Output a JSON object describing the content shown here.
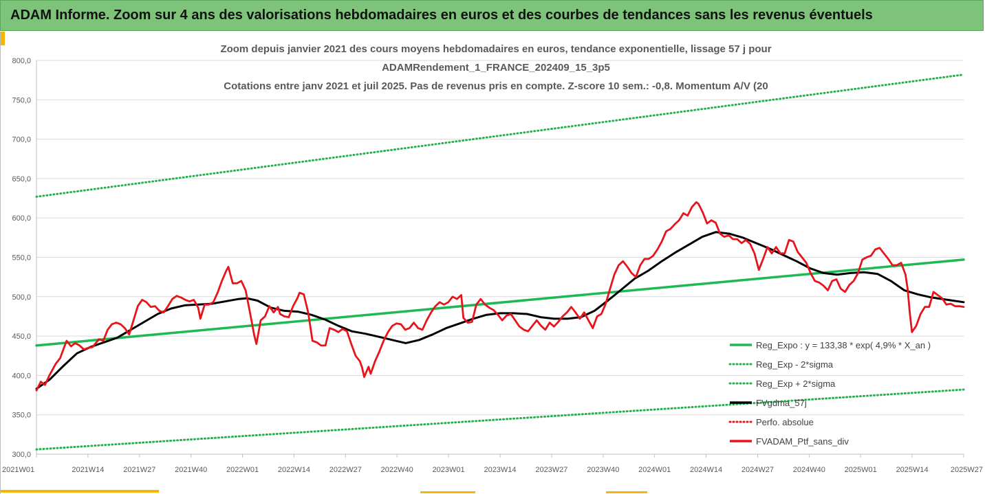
{
  "banner": {
    "title": "ADAM Informe. Zoom sur 4 ans des valorisations hebdomadaires en euros et des courbes de tendances sans les revenus éventuels"
  },
  "colors": {
    "banner_bg": "#7dc47a",
    "trend": "#1db954",
    "dotted": "#22b14c",
    "smooth": "#000000",
    "price": "#e8141b",
    "absolute": "#e8141b",
    "accent": "#f2b705"
  },
  "chart_data": {
    "type": "line",
    "title_lines": [
      "Zoom depuis janvier 2021 des cours moyens hebdomadaires  en euros, tendance exponentielle, lissage 57 j pour",
      "ADAMRendement_1_FRANCE_202409_15_3p5",
      "Cotations entre janv 2021 et juil 2025. Pas de revenus pris en compte. Z-score 10 sem.: -0,8. Momentum A/V (20"
    ],
    "x_ticks": [
      "2021W01",
      "2021W14",
      "2021W27",
      "2021W40",
      "2022W01",
      "2022W14",
      "2022W27",
      "2022W40",
      "2023W01",
      "2023W14",
      "2023W27",
      "2023W40",
      "2024W01",
      "2024W14",
      "2024W27",
      "2024W40",
      "2025W01",
      "2025W14",
      "2025W27"
    ],
    "y_ticks": [
      "300,0",
      "350,0",
      "400,0",
      "450,0",
      "500,0",
      "550,0",
      "600,0",
      "650,0",
      "700,0",
      "750,0",
      "800,0"
    ],
    "ylim": [
      300,
      800
    ],
    "x_range_weeks": [
      0,
      234
    ],
    "grid": "horizontal",
    "legend_position": "bottom-right",
    "series": [
      {
        "name": "Reg_Expo : y = 133,38 * exp( 4,9% *  X_an )",
        "style": "solid",
        "color": "#1db954",
        "points": [
          [
            0,
            438
          ],
          [
            234,
            547
          ]
        ]
      },
      {
        "name": "Reg_Exp - 2*sigma",
        "style": "dotted",
        "color": "#22b14c",
        "points": [
          [
            0,
            306
          ],
          [
            234,
            382
          ]
        ]
      },
      {
        "name": "Reg_Exp + 2*sigma",
        "style": "dotted",
        "color": "#22b14c",
        "points": [
          [
            0,
            627
          ],
          [
            234,
            782
          ]
        ]
      },
      {
        "name": "FVgdma_57j",
        "style": "solid",
        "color": "#000000",
        "points": [
          [
            0,
            383
          ],
          [
            5,
            395
          ],
          [
            10,
            412
          ],
          [
            15,
            428
          ],
          [
            20,
            436
          ],
          [
            25,
            442
          ],
          [
            30,
            448
          ],
          [
            35,
            458
          ],
          [
            40,
            468
          ],
          [
            45,
            478
          ],
          [
            50,
            485
          ],
          [
            55,
            489
          ],
          [
            60,
            490
          ],
          [
            65,
            491
          ],
          [
            70,
            494
          ],
          [
            75,
            497
          ],
          [
            78,
            498
          ],
          [
            82,
            495
          ],
          [
            87,
            486
          ],
          [
            92,
            482
          ],
          [
            97,
            481
          ],
          [
            102,
            477
          ],
          [
            107,
            471
          ],
          [
            112,
            463
          ],
          [
            117,
            456
          ],
          [
            122,
            453
          ],
          [
            127,
            449
          ],
          [
            132,
            445
          ],
          [
            137,
            441
          ],
          [
            142,
            445
          ],
          [
            147,
            452
          ],
          [
            152,
            460
          ],
          [
            157,
            466
          ],
          [
            162,
            472
          ],
          [
            167,
            477
          ],
          [
            172,
            479
          ],
          [
            177,
            479
          ],
          [
            182,
            478
          ],
          [
            187,
            474
          ],
          [
            192,
            472
          ],
          [
            197,
            472
          ],
          [
            202,
            474
          ],
          [
            207,
            482
          ],
          [
            212,
            495
          ],
          [
            217,
            509
          ],
          [
            222,
            523
          ],
          [
            227,
            533
          ],
          [
            232,
            545
          ],
          [
            237,
            556
          ],
          [
            242,
            566
          ],
          [
            247,
            576
          ],
          [
            252,
            582
          ],
          [
            257,
            580
          ],
          [
            262,
            575
          ],
          [
            267,
            568
          ],
          [
            272,
            561
          ],
          [
            277,
            553
          ],
          [
            282,
            545
          ],
          [
            287,
            536
          ],
          [
            292,
            530
          ],
          [
            297,
            528
          ],
          [
            302,
            530
          ],
          [
            307,
            531
          ],
          [
            312,
            529
          ],
          [
            317,
            520
          ],
          [
            322,
            508
          ],
          [
            327,
            503
          ],
          [
            332,
            499
          ],
          [
            338,
            496
          ],
          [
            344,
            493
          ]
        ]
      },
      {
        "name": "Perfo. absolue",
        "style": "dotted",
        "color": "#e8141b",
        "points": []
      },
      {
        "name": "FVADAM_Ptf_sans_div",
        "style": "solid",
        "color": "#e8141b",
        "points": [
          [
            0,
            381
          ],
          [
            2,
            392
          ],
          [
            4,
            388
          ],
          [
            6,
            400
          ],
          [
            9,
            415
          ],
          [
            11,
            422
          ],
          [
            13,
            437
          ],
          [
            14,
            444
          ],
          [
            16,
            437
          ],
          [
            18,
            441
          ],
          [
            20,
            438
          ],
          [
            22,
            433
          ],
          [
            24,
            435
          ],
          [
            26,
            436
          ],
          [
            29,
            446
          ],
          [
            31,
            444
          ],
          [
            33,
            458
          ],
          [
            35,
            465
          ],
          [
            37,
            467
          ],
          [
            39,
            465
          ],
          [
            41,
            460
          ],
          [
            43,
            452
          ],
          [
            45,
            470
          ],
          [
            47,
            488
          ],
          [
            49,
            496
          ],
          [
            51,
            493
          ],
          [
            53,
            487
          ],
          [
            55,
            488
          ],
          [
            57,
            482
          ],
          [
            59,
            480
          ],
          [
            61,
            488
          ],
          [
            63,
            497
          ],
          [
            65,
            501
          ],
          [
            67,
            499
          ],
          [
            69,
            496
          ],
          [
            71,
            494
          ],
          [
            73,
            496
          ],
          [
            75,
            486
          ],
          [
            76,
            472
          ],
          [
            78,
            490
          ],
          [
            80,
            490
          ],
          [
            82,
            493
          ],
          [
            84,
            505
          ],
          [
            86,
            520
          ],
          [
            88,
            533
          ],
          [
            89,
            538
          ],
          [
            91,
            517
          ],
          [
            93,
            517
          ],
          [
            95,
            520
          ],
          [
            97,
            508
          ],
          [
            99,
            480
          ],
          [
            101,
            451
          ],
          [
            102,
            440
          ],
          [
            104,
            470
          ],
          [
            106,
            475
          ],
          [
            108,
            488
          ],
          [
            110,
            480
          ],
          [
            112,
            487
          ],
          [
            113,
            478
          ],
          [
            115,
            475
          ],
          [
            117,
            474
          ],
          [
            119,
            488
          ],
          [
            121,
            498
          ],
          [
            122,
            505
          ],
          [
            124,
            503
          ],
          [
            126,
            480
          ],
          [
            128,
            444
          ],
          [
            130,
            442
          ],
          [
            132,
            438
          ],
          [
            134,
            438
          ],
          [
            136,
            460
          ],
          [
            138,
            458
          ],
          [
            140,
            455
          ],
          [
            142,
            459
          ],
          [
            144,
            456
          ],
          [
            146,
            440
          ],
          [
            148,
            425
          ],
          [
            150,
            418
          ],
          [
            151,
            410
          ],
          [
            152,
            398
          ],
          [
            154,
            411
          ],
          [
            155,
            402
          ],
          [
            157,
            418
          ],
          [
            159,
            430
          ],
          [
            161,
            444
          ],
          [
            163,
            455
          ],
          [
            165,
            463
          ],
          [
            167,
            466
          ],
          [
            169,
            465
          ],
          [
            171,
            458
          ],
          [
            173,
            460
          ],
          [
            175,
            467
          ],
          [
            177,
            460
          ],
          [
            179,
            458
          ],
          [
            181,
            470
          ],
          [
            183,
            480
          ],
          [
            185,
            488
          ],
          [
            187,
            493
          ],
          [
            189,
            490
          ],
          [
            191,
            493
          ],
          [
            193,
            500
          ],
          [
            195,
            497
          ],
          [
            197,
            502
          ],
          [
            198,
            473
          ],
          [
            200,
            467
          ],
          [
            202,
            468
          ],
          [
            204,
            490
          ],
          [
            206,
            497
          ],
          [
            208,
            490
          ],
          [
            210,
            486
          ],
          [
            212,
            483
          ],
          [
            214,
            477
          ],
          [
            216,
            470
          ],
          [
            218,
            476
          ],
          [
            220,
            478
          ],
          [
            222,
            470
          ],
          [
            224,
            462
          ],
          [
            226,
            458
          ],
          [
            228,
            456
          ],
          [
            230,
            463
          ],
          [
            232,
            470
          ],
          [
            234,
            463
          ],
          [
            236,
            458
          ],
          [
            238,
            467
          ],
          [
            240,
            462
          ],
          [
            242,
            468
          ],
          [
            244,
            475
          ],
          [
            246,
            480
          ],
          [
            248,
            487
          ],
          [
            250,
            480
          ],
          [
            252,
            472
          ],
          [
            254,
            480
          ],
          [
            256,
            470
          ],
          [
            258,
            460
          ],
          [
            260,
            475
          ],
          [
            262,
            478
          ],
          [
            264,
            491
          ],
          [
            266,
            510
          ],
          [
            268,
            528
          ],
          [
            270,
            540
          ],
          [
            272,
            545
          ],
          [
            274,
            538
          ],
          [
            276,
            530
          ],
          [
            278,
            525
          ],
          [
            280,
            540
          ],
          [
            282,
            548
          ],
          [
            284,
            548
          ],
          [
            286,
            552
          ],
          [
            288,
            560
          ],
          [
            290,
            570
          ],
          [
            292,
            583
          ],
          [
            294,
            586
          ],
          [
            296,
            592
          ],
          [
            298,
            597
          ],
          [
            300,
            606
          ],
          [
            302,
            603
          ],
          [
            304,
            614
          ],
          [
            306,
            620
          ],
          [
            307,
            618
          ],
          [
            309,
            607
          ],
          [
            311,
            593
          ],
          [
            313,
            597
          ],
          [
            315,
            594
          ],
          [
            317,
            580
          ],
          [
            319,
            576
          ],
          [
            321,
            578
          ],
          [
            323,
            573
          ],
          [
            325,
            573
          ],
          [
            327,
            568
          ],
          [
            329,
            572
          ],
          [
            331,
            567
          ],
          [
            333,
            555
          ],
          [
            335,
            534
          ],
          [
            337,
            548
          ],
          [
            339,
            563
          ],
          [
            341,
            555
          ],
          [
            343,
            563
          ],
          [
            345,
            555
          ],
          [
            347,
            555
          ],
          [
            349,
            572
          ],
          [
            351,
            570
          ],
          [
            353,
            557
          ],
          [
            355,
            550
          ],
          [
            357,
            543
          ],
          [
            359,
            530
          ],
          [
            361,
            520
          ],
          [
            363,
            518
          ],
          [
            365,
            514
          ],
          [
            367,
            508
          ],
          [
            369,
            520
          ],
          [
            371,
            522
          ],
          [
            373,
            510
          ],
          [
            375,
            506
          ],
          [
            377,
            515
          ],
          [
            379,
            520
          ],
          [
            381,
            530
          ],
          [
            383,
            547
          ],
          [
            385,
            550
          ],
          [
            387,
            552
          ],
          [
            389,
            560
          ],
          [
            391,
            562
          ],
          [
            393,
            555
          ],
          [
            395,
            548
          ],
          [
            397,
            540
          ],
          [
            399,
            540
          ],
          [
            401,
            543
          ],
          [
            403,
            528
          ],
          [
            404,
            510
          ],
          [
            405,
            480
          ],
          [
            406,
            455
          ],
          [
            408,
            463
          ],
          [
            410,
            478
          ],
          [
            412,
            487
          ],
          [
            414,
            487
          ],
          [
            416,
            506
          ],
          [
            418,
            502
          ],
          [
            420,
            498
          ],
          [
            422,
            490
          ],
          [
            424,
            491
          ],
          [
            426,
            488
          ],
          [
            428,
            488
          ],
          [
            430,
            487
          ]
        ]
      }
    ]
  }
}
